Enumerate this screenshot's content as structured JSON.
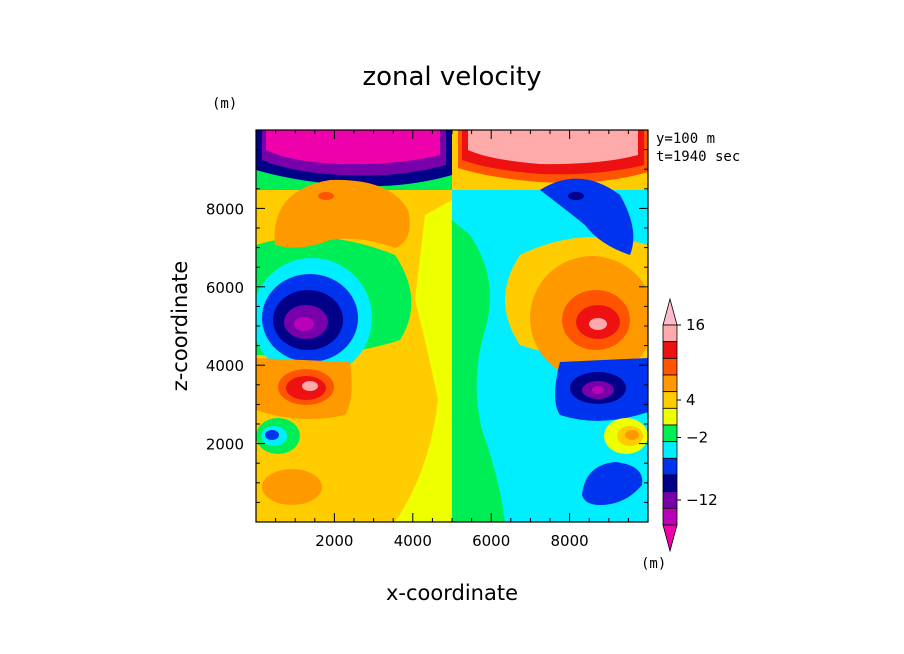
{
  "chart_data": {
    "type": "heatmap",
    "title": "zonal velocity",
    "xlabel": "x-coordinate",
    "ylabel": "z-coordinate",
    "xlim": [
      0,
      10000
    ],
    "ylim": [
      0,
      10000
    ],
    "x_unit": "(m)",
    "y_unit": "(m)",
    "x_ticks": [
      2000,
      4000,
      6000,
      8000
    ],
    "y_ticks": [
      2000,
      4000,
      6000,
      8000
    ],
    "annotations": [
      "y=100 m",
      "t=1940 sec"
    ],
    "grid": false,
    "colorbar": {
      "position": "right",
      "unit": "(m)",
      "labels": [
        {
          "text": "16",
          "value": 16
        },
        {
          "text": "4",
          "value": 4
        },
        {
          "text": "−2",
          "value": -2
        },
        {
          "text": "−12",
          "value": -12
        }
      ],
      "levels": [
        -20,
        -16,
        -12,
        -8,
        -4,
        -2,
        0,
        2,
        4,
        8,
        12,
        16,
        20
      ],
      "colors": [
        "#ee00aa",
        "#bb00bb",
        "#7700aa",
        "#000088",
        "#0033ee",
        "#00eeff",
        "#00ee55",
        "#eeff00",
        "#ffcc00",
        "#ff9900",
        "#ff5500",
        "#ee1111",
        "#ffaaaa",
        "#ffbbcc"
      ]
    },
    "features": [
      {
        "x": 2500,
        "z": 9600,
        "value": -20
      },
      {
        "x": 7500,
        "z": 9600,
        "value": 20
      },
      {
        "x": 2100,
        "z": 8300,
        "value": 8
      },
      {
        "x": 8000,
        "z": 8300,
        "value": -12
      },
      {
        "x": 1400,
        "z": 5200,
        "value": -16
      },
      {
        "x": 8800,
        "z": 5200,
        "value": 16
      },
      {
        "x": 1400,
        "z": 3400,
        "value": 16
      },
      {
        "x": 8800,
        "z": 3400,
        "value": -16
      },
      {
        "x": 400,
        "z": 2200,
        "value": -8
      },
      {
        "x": 9500,
        "z": 2200,
        "value": 8
      },
      {
        "x": 1000,
        "z": 900,
        "value": 4
      },
      {
        "x": 9000,
        "z": 900,
        "value": -4
      },
      {
        "x": 2500,
        "z": 2000,
        "value": 2
      },
      {
        "x": 7500,
        "z": 2000,
        "value": -2
      }
    ]
  }
}
